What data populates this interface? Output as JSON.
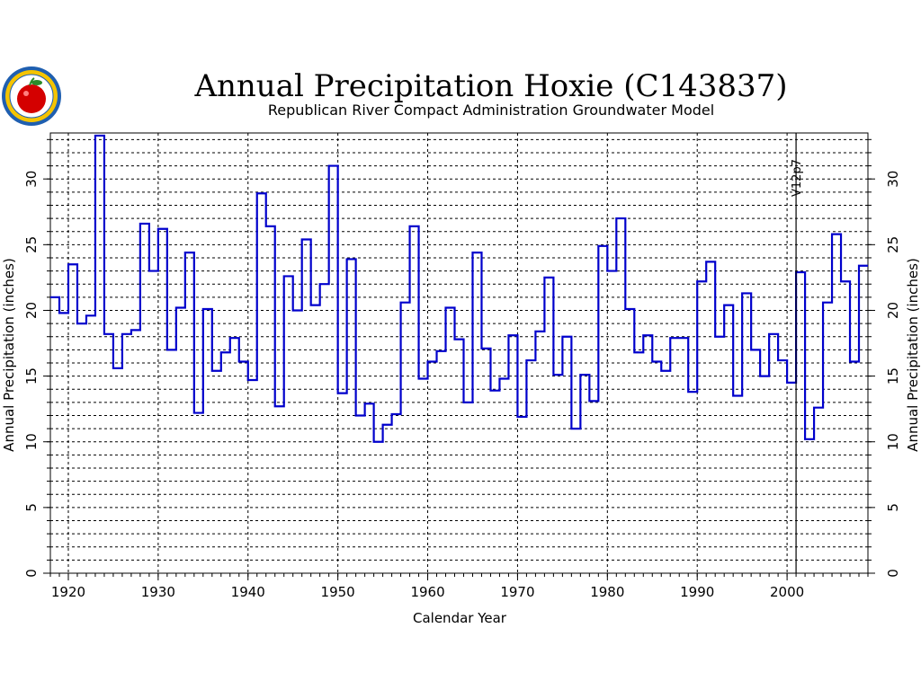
{
  "chart_data": {
    "type": "line",
    "title": "Annual Precipitation Hoxie (C143837)",
    "subtitle": "Republican River Compact Administration Groundwater Model",
    "xlabel": "Calendar Year",
    "ylabel": "Annual Precipitation (inches)",
    "y2label": "Annual Precipitation (inches)",
    "xlim": [
      1918,
      2009
    ],
    "ylim": [
      0,
      33.5
    ],
    "x_ticks": [
      1920,
      1930,
      1940,
      1950,
      1960,
      1970,
      1980,
      1990,
      2000
    ],
    "y_ticks": [
      0,
      5,
      10,
      15,
      20,
      25,
      30
    ],
    "grid": true,
    "step": true,
    "series": [
      {
        "color": "#0000cc",
        "x": [
          1918,
          1919,
          1920,
          1921,
          1922,
          1923,
          1924,
          1925,
          1926,
          1927,
          1928,
          1929,
          1930,
          1931,
          1932,
          1933,
          1934,
          1935,
          1936,
          1937,
          1938,
          1939,
          1940,
          1941,
          1942,
          1943,
          1944,
          1945,
          1946,
          1947,
          1948,
          1949,
          1950,
          1951,
          1952,
          1953,
          1954,
          1955,
          1956,
          1957,
          1958,
          1959,
          1960,
          1961,
          1962,
          1963,
          1964,
          1965,
          1966,
          1967,
          1968,
          1969,
          1970,
          1971,
          1972,
          1973,
          1974,
          1975,
          1976,
          1977,
          1978,
          1979,
          1980,
          1981,
          1982,
          1983,
          1984,
          1985,
          1986,
          1987,
          1988,
          1989,
          1990,
          1991,
          1992,
          1993,
          1994,
          1995,
          1996,
          1997,
          1998,
          1999,
          2000,
          2001,
          2002,
          2003,
          2004,
          2005,
          2006,
          2007,
          2008
        ],
        "values": [
          21.0,
          19.8,
          23.5,
          19.0,
          19.6,
          33.3,
          18.2,
          15.6,
          18.2,
          18.5,
          26.6,
          23.0,
          26.2,
          17.0,
          20.2,
          24.4,
          12.2,
          20.1,
          15.4,
          16.8,
          17.9,
          16.1,
          14.7,
          28.9,
          26.4,
          12.7,
          22.6,
          20.0,
          25.4,
          20.4,
          22.0,
          31.0,
          13.7,
          23.9,
          12.0,
          12.9,
          10.0,
          11.3,
          12.1,
          20.6,
          26.4,
          14.8,
          16.1,
          16.9,
          20.2,
          17.8,
          13.0,
          24.4,
          17.1,
          13.9,
          14.8,
          18.1,
          11.9,
          16.2,
          18.4,
          22.5,
          15.1,
          18.0,
          11.0,
          15.1,
          13.1,
          24.9,
          23.0,
          27.0,
          20.1,
          16.8,
          18.1,
          16.1,
          15.4,
          17.9,
          17.9,
          13.8,
          22.2,
          23.7,
          18.0,
          20.4,
          13.5,
          21.3,
          17.0,
          15.0,
          18.2,
          16.2,
          14.5,
          22.9,
          10.2,
          12.6,
          20.6,
          25.8,
          22.2,
          16.1,
          23.4
        ]
      }
    ],
    "annotations": [
      {
        "text": "V12p7",
        "x": 2001
      }
    ]
  },
  "logo": {
    "name": "kansas-apple-seal-icon",
    "colors": [
      "#1f5fb0",
      "#f5c400",
      "#d40000",
      "#2a8a2a"
    ]
  }
}
